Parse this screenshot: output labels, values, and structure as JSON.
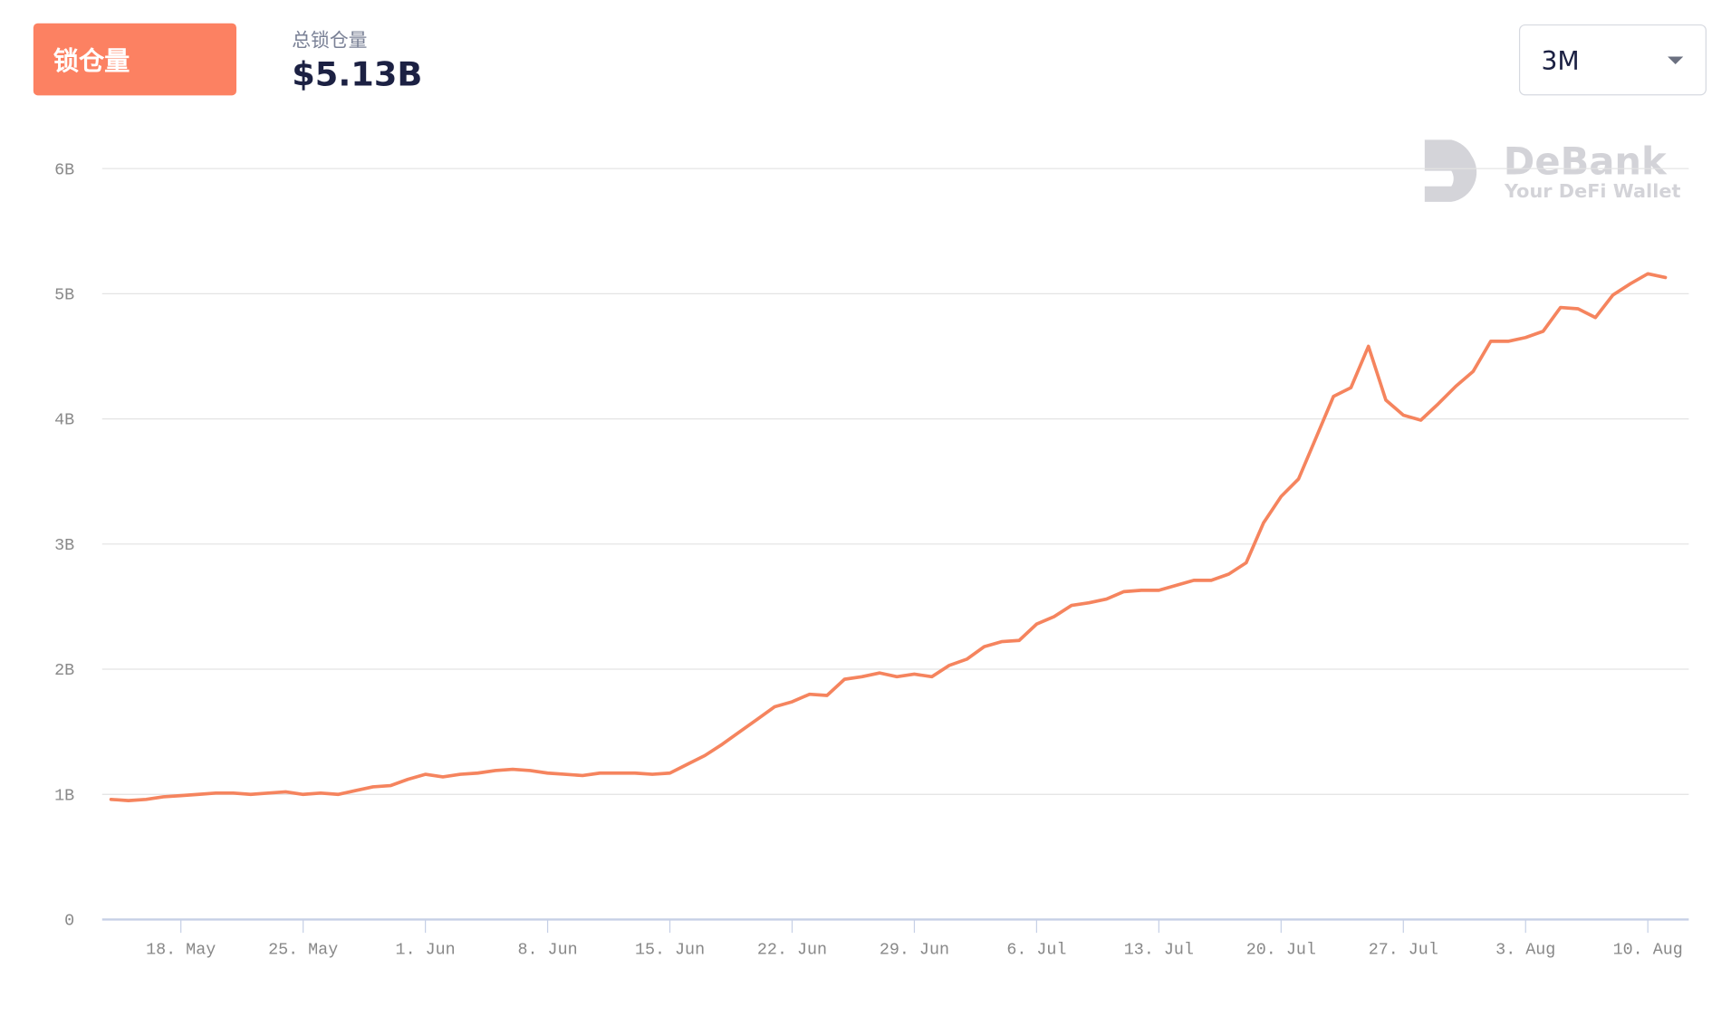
{
  "header": {
    "button": "锁仓量",
    "metric_label": "总锁仓量",
    "metric_value": "$5.13B",
    "range_select": "3M"
  },
  "watermark": {
    "brand": "DeBank",
    "tagline": "Your DeFi Wallet"
  },
  "chart_data": {
    "type": "line",
    "categories": [
      null,
      null,
      null,
      null,
      "18. May",
      null,
      null,
      null,
      null,
      null,
      null,
      "25. May",
      null,
      null,
      null,
      null,
      null,
      null,
      "1. Jun",
      null,
      null,
      null,
      null,
      null,
      null,
      "8. Jun",
      null,
      null,
      null,
      null,
      null,
      null,
      "15. Jun",
      null,
      null,
      null,
      null,
      null,
      null,
      "22. Jun",
      null,
      null,
      null,
      null,
      null,
      null,
      "29. Jun",
      null,
      null,
      null,
      null,
      null,
      null,
      "6. Jul",
      null,
      null,
      null,
      null,
      null,
      null,
      "13. Jul",
      null,
      null,
      null,
      null,
      null,
      null,
      "20. Jul",
      null,
      null,
      null,
      null,
      null,
      null,
      "27. Jul",
      null,
      null,
      null,
      null,
      null,
      null,
      "3. Aug",
      null,
      null,
      null,
      null,
      null,
      null,
      "10. Aug",
      null
    ],
    "series": [
      {
        "name": "总锁仓量",
        "color": "#f5845e",
        "values": [
          0.96,
          0.95,
          0.96,
          0.98,
          0.99,
          1.0,
          1.01,
          1.01,
          1.0,
          1.01,
          1.02,
          1.0,
          1.01,
          1.0,
          1.03,
          1.06,
          1.07,
          1.12,
          1.16,
          1.14,
          1.16,
          1.17,
          1.19,
          1.2,
          1.19,
          1.17,
          1.16,
          1.15,
          1.17,
          1.17,
          1.17,
          1.16,
          1.17,
          1.24,
          1.31,
          1.4,
          1.5,
          1.6,
          1.7,
          1.74,
          1.8,
          1.79,
          1.92,
          1.94,
          1.97,
          1.94,
          1.96,
          1.94,
          2.03,
          2.08,
          2.18,
          2.22,
          2.23,
          2.36,
          2.42,
          2.51,
          2.53,
          2.56,
          2.62,
          2.63,
          2.63,
          2.67,
          2.71,
          2.71,
          2.76,
          2.85,
          3.17,
          3.38,
          3.52,
          3.85,
          4.18,
          4.25,
          4.58,
          4.15,
          4.03,
          3.99,
          4.12,
          4.26,
          4.38,
          4.62,
          4.62,
          4.65,
          4.7,
          4.89,
          4.88,
          4.81,
          4.99,
          5.08,
          5.16,
          5.13
        ]
      }
    ],
    "ylim": [
      0,
      6
    ],
    "yticks": [
      {
        "value": 0,
        "label": "0"
      },
      {
        "value": 1,
        "label": "1B"
      },
      {
        "value": 2,
        "label": "2B"
      },
      {
        "value": 3,
        "label": "3B"
      },
      {
        "value": 4,
        "label": "4B"
      },
      {
        "value": 5,
        "label": "5B"
      },
      {
        "value": 6,
        "label": "6B"
      }
    ],
    "grid": true
  }
}
